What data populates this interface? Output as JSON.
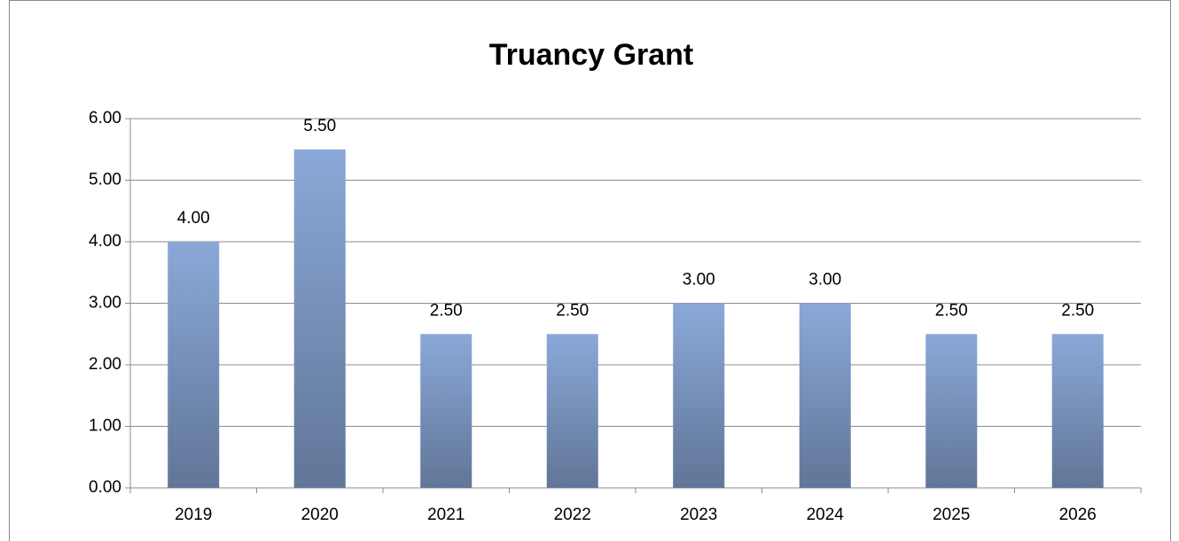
{
  "chart_data": {
    "type": "bar",
    "title": "Truancy Grant",
    "categories": [
      "2019",
      "2020",
      "2021",
      "2022",
      "2023",
      "2024",
      "2025",
      "2026"
    ],
    "values": [
      4,
      5.5,
      2.5,
      2.5,
      3,
      3,
      2.5,
      2.5
    ],
    "value_labels": [
      "4.00",
      "5.50",
      "2.50",
      "2.50",
      "3.00",
      "3.00",
      "2.50",
      "2.50"
    ],
    "color": "#8aa8d8",
    "ylim": [
      0,
      6
    ],
    "yticks": [
      {
        "value": 0,
        "label": "0.00"
      },
      {
        "value": 1,
        "label": "1.00"
      },
      {
        "value": 2,
        "label": "2.00"
      },
      {
        "value": 3,
        "label": "3.00"
      },
      {
        "value": 4,
        "label": "4.00"
      },
      {
        "value": 5,
        "label": "5.00"
      },
      {
        "value": 6,
        "label": "6.00"
      }
    ],
    "grid": true
  }
}
